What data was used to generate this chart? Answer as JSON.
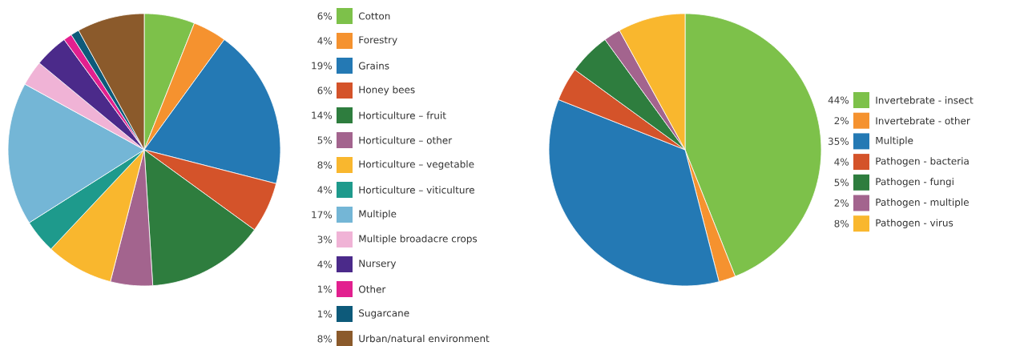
{
  "chart_data": [
    {
      "type": "pie",
      "legend": "right",
      "categories": [
        "Cotton",
        "Forestry",
        "Grains",
        "Honey bees",
        "Horticulture – fruit",
        "Horticulture – other",
        "Horticulture – vegetable",
        "Horticulture – viticulture",
        "Multiple",
        "Multiple broadacre crops",
        "Nursery",
        "Other",
        "Sugarcane",
        "Urban/natural environment"
      ],
      "values": [
        6,
        4,
        19,
        6,
        14,
        5,
        8,
        4,
        17,
        3,
        4,
        1,
        1,
        8
      ],
      "value_labels": [
        "6%",
        "4%",
        "19%",
        "6%",
        "14%",
        "5%",
        "8%",
        "4%",
        "17%",
        "3%",
        "4%",
        "1%",
        "1%",
        "8%"
      ],
      "colors": [
        "#7dc14a",
        "#f5922f",
        "#2479b4",
        "#d4532a",
        "#2e7d3e",
        "#a3648e",
        "#f9b72e",
        "#1e9a8c",
        "#74b6d6",
        "#f0b3d6",
        "#4b2a8a",
        "#e2208f",
        "#0d5a7a",
        "#8b5a2b"
      ]
    },
    {
      "type": "pie",
      "legend": "right",
      "categories": [
        "Invertebrate - insect",
        "Invertebrate - other",
        "Multiple",
        "Pathogen - bacteria",
        "Pathogen - fungi",
        "Pathogen - multiple",
        "Pathogen - virus"
      ],
      "values": [
        44,
        2,
        35,
        4,
        5,
        2,
        8
      ],
      "value_labels": [
        "44%",
        "2%",
        "35%",
        "4%",
        "5%",
        "2%",
        "8%"
      ],
      "colors": [
        "#7dc14a",
        "#f5922f",
        "#2479b4",
        "#d4532a",
        "#2e7d3e",
        "#a3648e",
        "#f9b72e"
      ]
    }
  ]
}
